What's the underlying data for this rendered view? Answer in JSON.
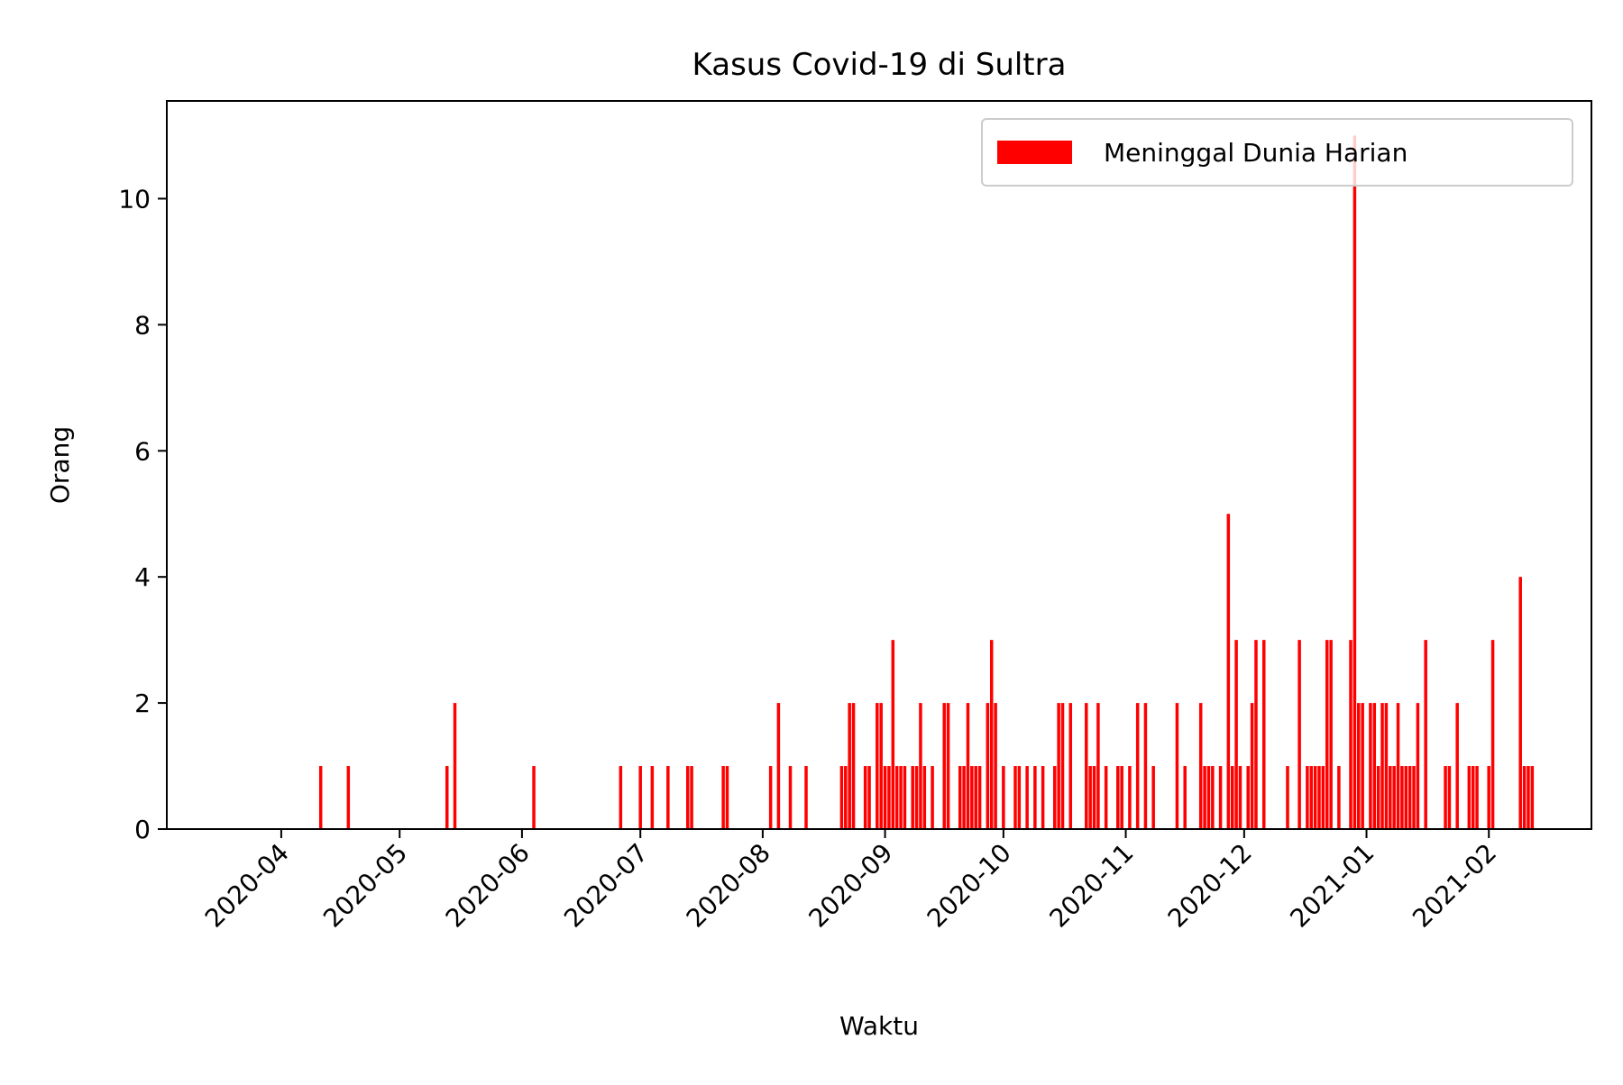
{
  "chart_data": {
    "type": "bar",
    "title": "Kasus Covid-19 di Sultra",
    "xlabel": "Waktu",
    "ylabel": "Orang",
    "xlim": [
      "2020-03-03",
      "2021-02-27"
    ],
    "ylim": [
      0,
      11.55
    ],
    "yticks": [
      0,
      2,
      4,
      6,
      8,
      10
    ],
    "xticks": [
      {
        "date": "2020-04-01",
        "label": "2020-04"
      },
      {
        "date": "2020-05-01",
        "label": "2020-05"
      },
      {
        "date": "2020-06-01",
        "label": "2020-06"
      },
      {
        "date": "2020-07-01",
        "label": "2020-07"
      },
      {
        "date": "2020-08-01",
        "label": "2020-08"
      },
      {
        "date": "2020-09-01",
        "label": "2020-09"
      },
      {
        "date": "2020-10-01",
        "label": "2020-10"
      },
      {
        "date": "2020-11-01",
        "label": "2020-11"
      },
      {
        "date": "2020-12-01",
        "label": "2020-12"
      },
      {
        "date": "2021-01-01",
        "label": "2021-01"
      },
      {
        "date": "2021-02-01",
        "label": "2021-02"
      }
    ],
    "grid": false,
    "legend_position": "top-right",
    "series": [
      {
        "name": "Meninggal Dunia Harian",
        "color": "#ff0000",
        "points": [
          [
            "2020-04-11",
            1
          ],
          [
            "2020-04-18",
            1
          ],
          [
            "2020-05-13",
            1
          ],
          [
            "2020-05-15",
            2
          ],
          [
            "2020-06-04",
            1
          ],
          [
            "2020-06-26",
            1
          ],
          [
            "2020-07-01",
            1
          ],
          [
            "2020-07-04",
            1
          ],
          [
            "2020-07-08",
            1
          ],
          [
            "2020-07-13",
            1
          ],
          [
            "2020-07-14",
            1
          ],
          [
            "2020-07-22",
            1
          ],
          [
            "2020-07-23",
            1
          ],
          [
            "2020-08-03",
            1
          ],
          [
            "2020-08-05",
            2
          ],
          [
            "2020-08-08",
            1
          ],
          [
            "2020-08-12",
            1
          ],
          [
            "2020-08-21",
            1
          ],
          [
            "2020-08-22",
            1
          ],
          [
            "2020-08-23",
            2
          ],
          [
            "2020-08-24",
            2
          ],
          [
            "2020-08-27",
            1
          ],
          [
            "2020-08-28",
            1
          ],
          [
            "2020-08-30",
            2
          ],
          [
            "2020-08-31",
            2
          ],
          [
            "2020-09-01",
            1
          ],
          [
            "2020-09-02",
            1
          ],
          [
            "2020-09-03",
            3
          ],
          [
            "2020-09-04",
            1
          ],
          [
            "2020-09-05",
            1
          ],
          [
            "2020-09-06",
            1
          ],
          [
            "2020-09-08",
            1
          ],
          [
            "2020-09-09",
            1
          ],
          [
            "2020-09-10",
            2
          ],
          [
            "2020-09-11",
            1
          ],
          [
            "2020-09-13",
            1
          ],
          [
            "2020-09-16",
            2
          ],
          [
            "2020-09-17",
            2
          ],
          [
            "2020-09-20",
            1
          ],
          [
            "2020-09-21",
            1
          ],
          [
            "2020-09-22",
            2
          ],
          [
            "2020-09-23",
            1
          ],
          [
            "2020-09-24",
            1
          ],
          [
            "2020-09-25",
            1
          ],
          [
            "2020-09-27",
            2
          ],
          [
            "2020-09-28",
            3
          ],
          [
            "2020-09-29",
            2
          ],
          [
            "2020-10-01",
            1
          ],
          [
            "2020-10-04",
            1
          ],
          [
            "2020-10-05",
            1
          ],
          [
            "2020-10-07",
            1
          ],
          [
            "2020-10-09",
            1
          ],
          [
            "2020-10-11",
            1
          ],
          [
            "2020-10-14",
            1
          ],
          [
            "2020-10-15",
            2
          ],
          [
            "2020-10-16",
            2
          ],
          [
            "2020-10-18",
            2
          ],
          [
            "2020-10-22",
            2
          ],
          [
            "2020-10-23",
            1
          ],
          [
            "2020-10-24",
            1
          ],
          [
            "2020-10-25",
            2
          ],
          [
            "2020-10-27",
            1
          ],
          [
            "2020-10-30",
            1
          ],
          [
            "2020-10-31",
            1
          ],
          [
            "2020-11-02",
            1
          ],
          [
            "2020-11-04",
            2
          ],
          [
            "2020-11-06",
            2
          ],
          [
            "2020-11-08",
            1
          ],
          [
            "2020-11-14",
            2
          ],
          [
            "2020-11-16",
            1
          ],
          [
            "2020-11-20",
            2
          ],
          [
            "2020-11-21",
            1
          ],
          [
            "2020-11-22",
            1
          ],
          [
            "2020-11-23",
            1
          ],
          [
            "2020-11-25",
            1
          ],
          [
            "2020-11-27",
            5
          ],
          [
            "2020-11-28",
            1
          ],
          [
            "2020-11-29",
            3
          ],
          [
            "2020-11-30",
            1
          ],
          [
            "2020-12-02",
            1
          ],
          [
            "2020-12-03",
            2
          ],
          [
            "2020-12-04",
            3
          ],
          [
            "2020-12-06",
            3
          ],
          [
            "2020-12-12",
            1
          ],
          [
            "2020-12-15",
            3
          ],
          [
            "2020-12-17",
            1
          ],
          [
            "2020-12-18",
            1
          ],
          [
            "2020-12-19",
            1
          ],
          [
            "2020-12-20",
            1
          ],
          [
            "2020-12-21",
            1
          ],
          [
            "2020-12-22",
            3
          ],
          [
            "2020-12-23",
            3
          ],
          [
            "2020-12-25",
            1
          ],
          [
            "2020-12-28",
            3
          ],
          [
            "2020-12-29",
            11
          ],
          [
            "2020-12-30",
            2
          ],
          [
            "2020-12-31",
            2
          ],
          [
            "2021-01-02",
            2
          ],
          [
            "2021-01-03",
            2
          ],
          [
            "2021-01-04",
            1
          ],
          [
            "2021-01-05",
            2
          ],
          [
            "2021-01-06",
            2
          ],
          [
            "2021-01-07",
            1
          ],
          [
            "2021-01-08",
            1
          ],
          [
            "2021-01-09",
            2
          ],
          [
            "2021-01-10",
            1
          ],
          [
            "2021-01-11",
            1
          ],
          [
            "2021-01-12",
            1
          ],
          [
            "2021-01-13",
            1
          ],
          [
            "2021-01-14",
            2
          ],
          [
            "2021-01-16",
            3
          ],
          [
            "2021-01-21",
            1
          ],
          [
            "2021-01-22",
            1
          ],
          [
            "2021-01-24",
            2
          ],
          [
            "2021-01-27",
            1
          ],
          [
            "2021-01-28",
            1
          ],
          [
            "2021-01-29",
            1
          ],
          [
            "2021-02-01",
            1
          ],
          [
            "2021-02-02",
            3
          ],
          [
            "2021-02-09",
            4
          ],
          [
            "2021-02-10",
            1
          ],
          [
            "2021-02-11",
            1
          ],
          [
            "2021-02-12",
            1
          ]
        ]
      }
    ]
  }
}
